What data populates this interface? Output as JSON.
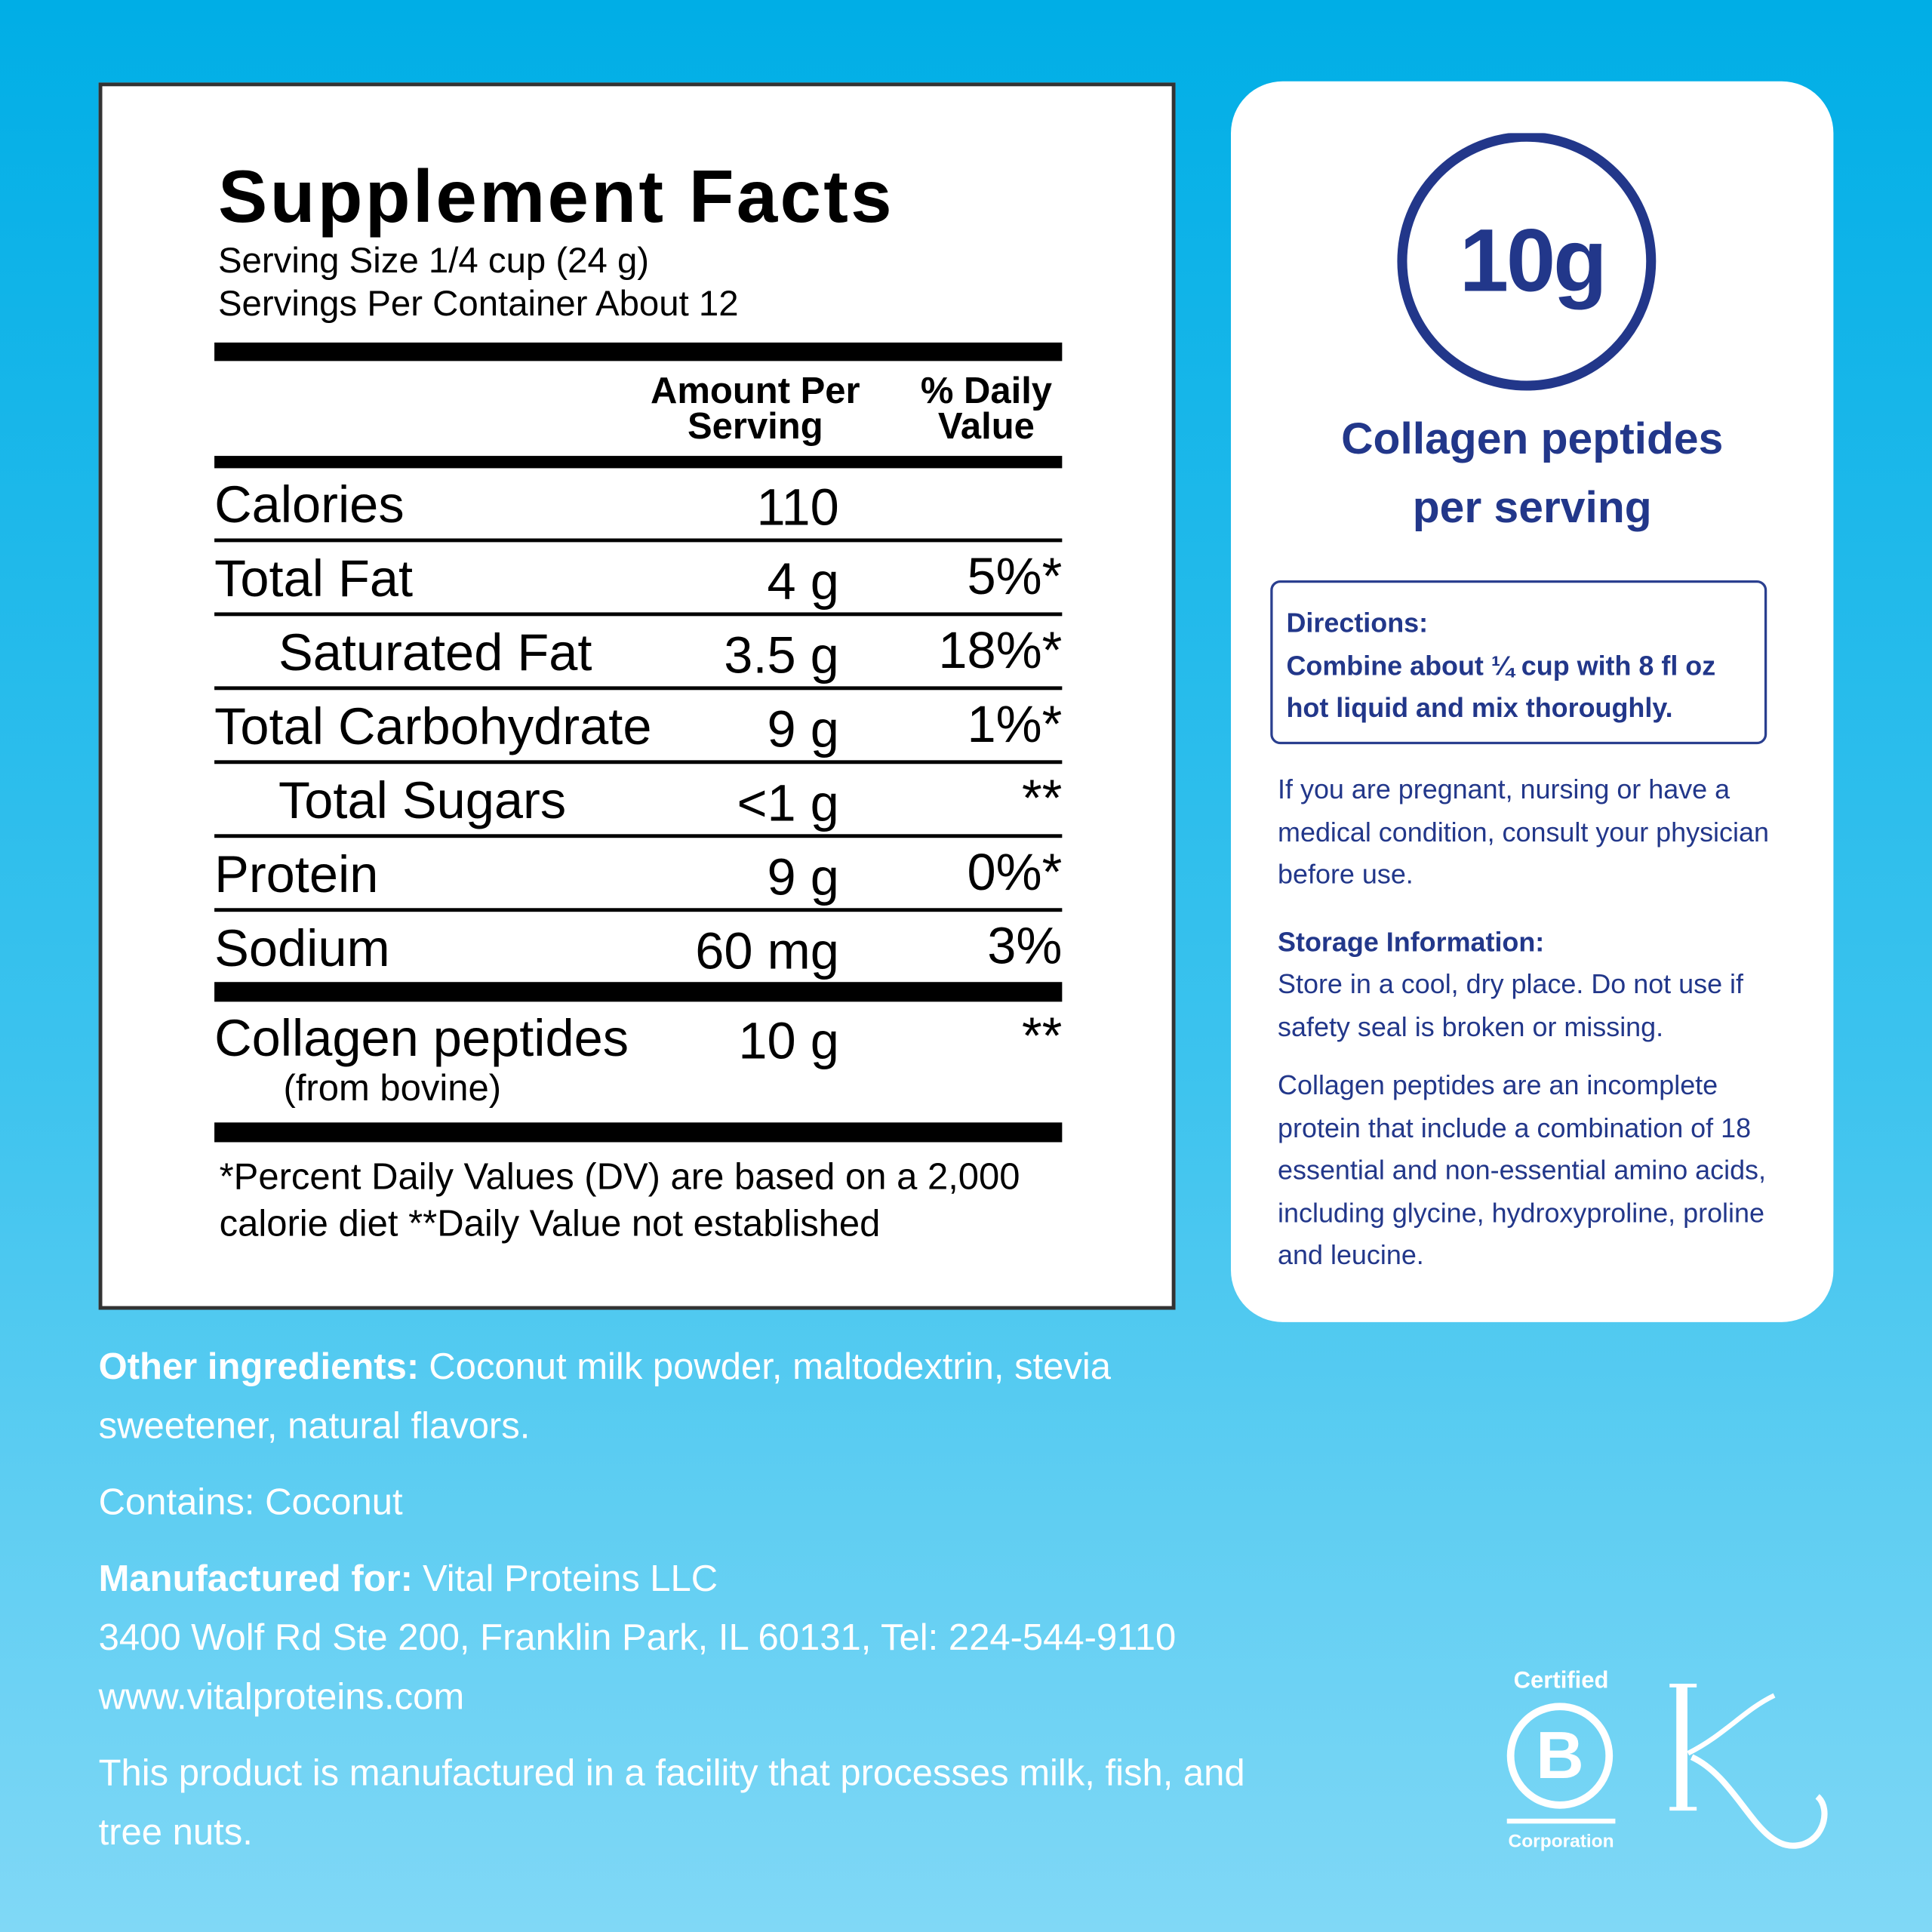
{
  "supplement_facts": {
    "title": "Supplement Facts",
    "serving_size": "Serving Size 1/4 cup (24 g)",
    "servings_per_container": "Servings Per Container About 12",
    "header": {
      "amount": "Amount Per Serving",
      "daily_value": "% Daily Value"
    },
    "rows": [
      {
        "name": "Calories",
        "amount": "110"
      },
      {
        "name": "Total Fat",
        "amount": "4 g",
        "daily_value": "5%*",
        "sub": [
          {
            "name": "Saturated Fat",
            "amount": "3.5 g",
            "daily_value": "18%*"
          }
        ]
      },
      {
        "name": "Total Carbohydrate",
        "amount": "9 g",
        "daily_value": "1%*",
        "sub": [
          {
            "name": "Total Sugars",
            "amount": "<1 g",
            "daily_value": "**"
          }
        ]
      },
      {
        "name": "Protein",
        "amount": "9 g",
        "daily_value": "0%*"
      },
      {
        "name": "Sodium",
        "amount": "60 mg",
        "daily_value": "3%"
      }
    ],
    "other_rows": [
      {
        "name": "Collagen peptides",
        "note": "(from bovine)",
        "amount": "10 g",
        "daily_value": "**"
      }
    ],
    "footnote": "*Percent Daily Values (DV) are based on a 2,000 calorie diet **Daily Value not established"
  },
  "highlight": {
    "amount": "10g",
    "label": "Collagen peptides per serving"
  },
  "directions": {
    "heading": "Directions:",
    "text": "Combine about ¼ cup with 8 fl oz hot liquid and mix thoroughly."
  },
  "warning": "If you are pregnant, nursing or have a medical condition, consult your physician before use.",
  "storage": {
    "heading": "Storage Information:",
    "text": "Store in a cool, dry place. Do not use if safety seal is broken or missing."
  },
  "collagen_note": "Collagen peptides are an incomplete protein that include a combination of 18 essential and non-essential amino acids, including glycine, hydroxyproline, proline and leucine.",
  "ingredients": {
    "label": "Other ingredients:",
    "text": "Coconut milk powder, maltodextrin, stevia sweetener, natural flavors."
  },
  "contains": "Contains: Coconut",
  "manufacturer": {
    "label": "Manufactured for:",
    "name": "Vital Proteins LLC",
    "address": "3400 Wolf Rd Ste 200, Franklin Park, IL 60131, Tel: 224-544-9110",
    "website": "www.vitalproteins.com"
  },
  "allergen_note": "This product is manufactured in a facility that processes milk, fish, and tree nuts.",
  "logos": {
    "bcorp_top": "Certified",
    "bcorp_letter": "B",
    "bcorp_bottom": "Corporation"
  }
}
